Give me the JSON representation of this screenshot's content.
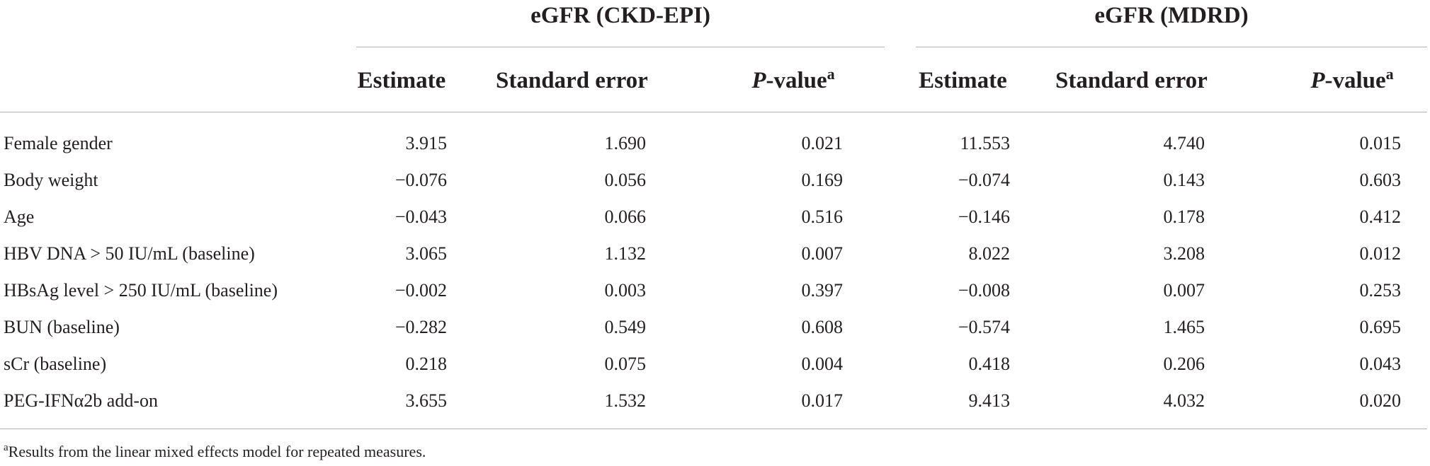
{
  "groups": [
    {
      "title": "eGFR (CKD-EPI)"
    },
    {
      "title": "eGFR (MDRD)"
    }
  ],
  "columns": {
    "estimate": "Estimate",
    "std_error": "Standard error",
    "p_value_italic": "P",
    "p_value_rest": "-value",
    "p_value_marker": "a"
  },
  "rows": [
    {
      "label": "Female gender",
      "values": [
        "3.915",
        "1.690",
        "0.021",
        "11.553",
        "4.740",
        "0.015"
      ]
    },
    {
      "label": "Body weight",
      "values": [
        "−0.076",
        "0.056",
        "0.169",
        "−0.074",
        "0.143",
        "0.603"
      ]
    },
    {
      "label": "Age",
      "values": [
        "−0.043",
        "0.066",
        "0.516",
        "−0.146",
        "0.178",
        "0.412"
      ]
    },
    {
      "label": "HBV DNA > 50 IU/mL (baseline)",
      "values": [
        "3.065",
        "1.132",
        "0.007",
        "8.022",
        "3.208",
        "0.012"
      ]
    },
    {
      "label": "HBsAg level > 250 IU/mL (baseline)",
      "values": [
        "−0.002",
        "0.003",
        "0.397",
        "−0.008",
        "0.007",
        "0.253"
      ]
    },
    {
      "label": "BUN (baseline)",
      "values": [
        "−0.282",
        "0.549",
        "0.608",
        "−0.574",
        "1.465",
        "0.695"
      ]
    },
    {
      "label": "sCr (baseline)",
      "values": [
        "0.218",
        "0.075",
        "0.004",
        "0.418",
        "0.206",
        "0.043"
      ]
    },
    {
      "label": "PEG-IFNα2b add-on",
      "values": [
        "3.655",
        "1.532",
        "0.017",
        "9.413",
        "4.032",
        "0.020"
      ]
    }
  ],
  "footnote": {
    "marker": "a",
    "text": "Results from the linear mixed effects model for repeated measures."
  }
}
